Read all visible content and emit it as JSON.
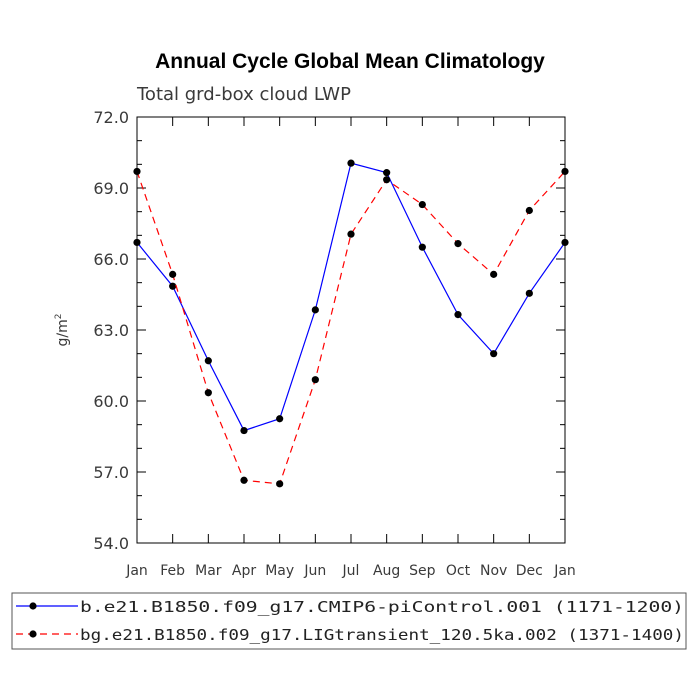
{
  "chart_data": {
    "type": "line",
    "title": "Annual Cycle Global Mean Climatology",
    "subtitle": "Total grd-box cloud LWP",
    "ylabel": "g/m",
    "ylabel_superscript": "2",
    "xlabel": "",
    "categories": [
      "Jan",
      "Feb",
      "Mar",
      "Apr",
      "May",
      "Jun",
      "Jul",
      "Aug",
      "Sep",
      "Oct",
      "Nov",
      "Dec",
      "Jan"
    ],
    "ylim": [
      54.0,
      72.0
    ],
    "yticks": [
      "54.0",
      "57.0",
      "60.0",
      "63.0",
      "66.0",
      "69.0",
      "72.0"
    ],
    "legend_position": "bottom",
    "series": [
      {
        "name": "b.e21.B1850.f09_g17.CMIP6-piControl.001 (1171-1200)",
        "color": "#0000ff",
        "line_style": "solid",
        "marker": "filled-circle",
        "values": [
          66.7,
          64.85,
          61.7,
          58.75,
          59.25,
          63.85,
          70.05,
          69.65,
          66.5,
          63.65,
          62.0,
          64.55,
          66.7
        ]
      },
      {
        "name": "bg.e21.B1850.f09_g17.LIGtransient_120.5ka.002 (1371-1400)",
        "color": "#ff0000",
        "line_style": "dashed",
        "marker": "filled-circle",
        "values": [
          69.7,
          65.35,
          60.35,
          56.65,
          56.5,
          60.9,
          67.05,
          69.35,
          68.3,
          66.65,
          65.35,
          68.05,
          69.7
        ]
      }
    ]
  }
}
